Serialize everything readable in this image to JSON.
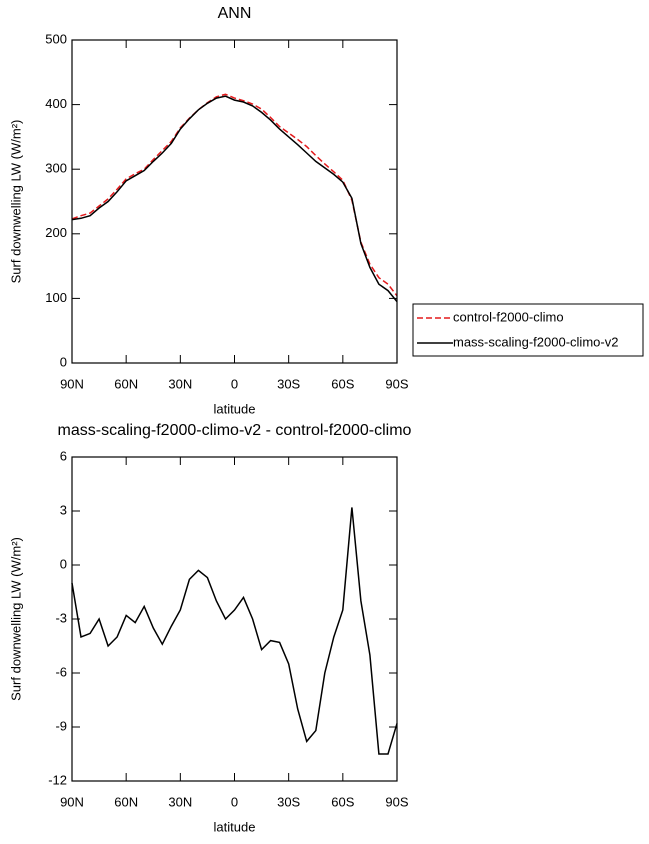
{
  "chart_data": [
    {
      "type": "line",
      "title": "ANN",
      "xlabel": "latitude",
      "ylabel": "Surf downwelling LW (W/m²)",
      "x": [
        90,
        85,
        80,
        75,
        70,
        65,
        60,
        55,
        50,
        45,
        40,
        35,
        30,
        25,
        20,
        15,
        10,
        5,
        0,
        -5,
        -10,
        -15,
        -20,
        -25,
        -30,
        -35,
        -40,
        -45,
        -50,
        -55,
        -60,
        -65,
        -70,
        -75,
        -80,
        -85,
        -90
      ],
      "series": [
        {
          "name": "control-f2000-climo",
          "color": "#e41a1c",
          "dash": true,
          "values": [
            223,
            228,
            232,
            243,
            254,
            269,
            285,
            293,
            300,
            315,
            329,
            343,
            364,
            379,
            392,
            403,
            412,
            416,
            410,
            406,
            401,
            393,
            380,
            366,
            356,
            346,
            335,
            321,
            308,
            296,
            283,
            252,
            187,
            153,
            132,
            122,
            104
          ]
        },
        {
          "name": "mass-scaling-f2000-climo-v2",
          "color": "#000000",
          "dash": false,
          "values": [
            222,
            224,
            228,
            240,
            250,
            265,
            282,
            290,
            298,
            312,
            325,
            340,
            362,
            378,
            392,
            402,
            410,
            413,
            407,
            404,
            398,
            388,
            376,
            362,
            350,
            338,
            325,
            312,
            302,
            292,
            280,
            255,
            185,
            148,
            122,
            112,
            95
          ]
        }
      ],
      "xlim": [
        90,
        -90
      ],
      "xticks": [
        {
          "value": 90,
          "label": "90N"
        },
        {
          "value": 60,
          "label": "60N"
        },
        {
          "value": 30,
          "label": "30N"
        },
        0,
        {
          "value": -30,
          "label": "30S"
        },
        {
          "value": -60,
          "label": "60S"
        },
        {
          "value": -90,
          "label": "90S"
        }
      ],
      "ylim": [
        0,
        500
      ],
      "yticks": [
        0,
        100,
        200,
        300,
        400,
        500
      ],
      "legend": "right"
    },
    {
      "type": "line",
      "title": "mass-scaling-f2000-climo-v2 - control-f2000-climo",
      "xlabel": "latitude",
      "ylabel": "Surf downwelling LW (W/m²)",
      "x": [
        90,
        85,
        80,
        75,
        70,
        65,
        60,
        55,
        50,
        45,
        40,
        35,
        30,
        25,
        20,
        15,
        10,
        5,
        0,
        -5,
        -10,
        -15,
        -20,
        -25,
        -30,
        -35,
        -40,
        -45,
        -50,
        -55,
        -60,
        -65,
        -70,
        -75,
        -80,
        -85,
        -90
      ],
      "color": "#000000",
      "values": [
        -1,
        -4,
        -3.8,
        -3,
        -4.5,
        -4,
        -2.8,
        -3.2,
        -2.3,
        -3.5,
        -4.4,
        -3.4,
        -2.5,
        -0.8,
        -0.3,
        -0.7,
        -2,
        -3,
        -2.5,
        -1.8,
        -3,
        -4.7,
        -4.2,
        -4.3,
        -5.5,
        -8,
        -9.8,
        -9.2,
        -6,
        -4,
        -2.5,
        3.2,
        -2,
        -5,
        -10.5,
        -10.5,
        -8.8
      ],
      "xlim": [
        90,
        -90
      ],
      "xticks": [
        {
          "value": 90,
          "label": "90N"
        },
        {
          "value": 60,
          "label": "60N"
        },
        {
          "value": 30,
          "label": "30N"
        },
        0,
        {
          "value": -30,
          "label": "30S"
        },
        {
          "value": -60,
          "label": "60S"
        },
        {
          "value": -90,
          "label": "90S"
        }
      ],
      "ylim": [
        -12,
        6
      ],
      "yticks": [
        -12,
        -9,
        -6,
        -3,
        0,
        3,
        6
      ]
    }
  ]
}
